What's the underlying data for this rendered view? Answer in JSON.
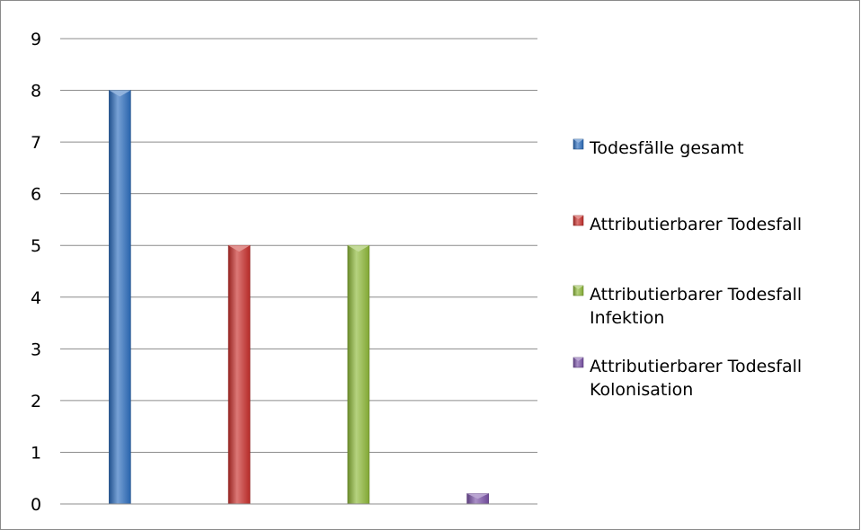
{
  "chart_data": {
    "type": "bar",
    "categories": [
      "",
      "",
      "",
      ""
    ],
    "series": [
      {
        "name": "Todesfälle gesamt",
        "values": [
          8,
          null,
          null,
          null
        ],
        "color": "#2e6fbf"
      },
      {
        "name": "Attributierbarer Todesfall",
        "values": [
          null,
          5,
          null,
          null
        ],
        "color": "#c9302c"
      },
      {
        "name": "Attributierbarer Todesfall Infektion",
        "values": [
          null,
          null,
          5,
          null
        ],
        "color": "#8fba3a"
      },
      {
        "name": "Attributierbarer Todesfall Kolonisation",
        "values": [
          null,
          null,
          null,
          0.2
        ],
        "color": "#7a52a8"
      }
    ],
    "title": "",
    "xlabel": "",
    "ylabel": "",
    "ylim": [
      0,
      9
    ],
    "yticks": [
      0,
      1,
      2,
      3,
      4,
      5,
      6,
      7,
      8,
      9
    ],
    "grid": true,
    "legend_position": "right"
  }
}
